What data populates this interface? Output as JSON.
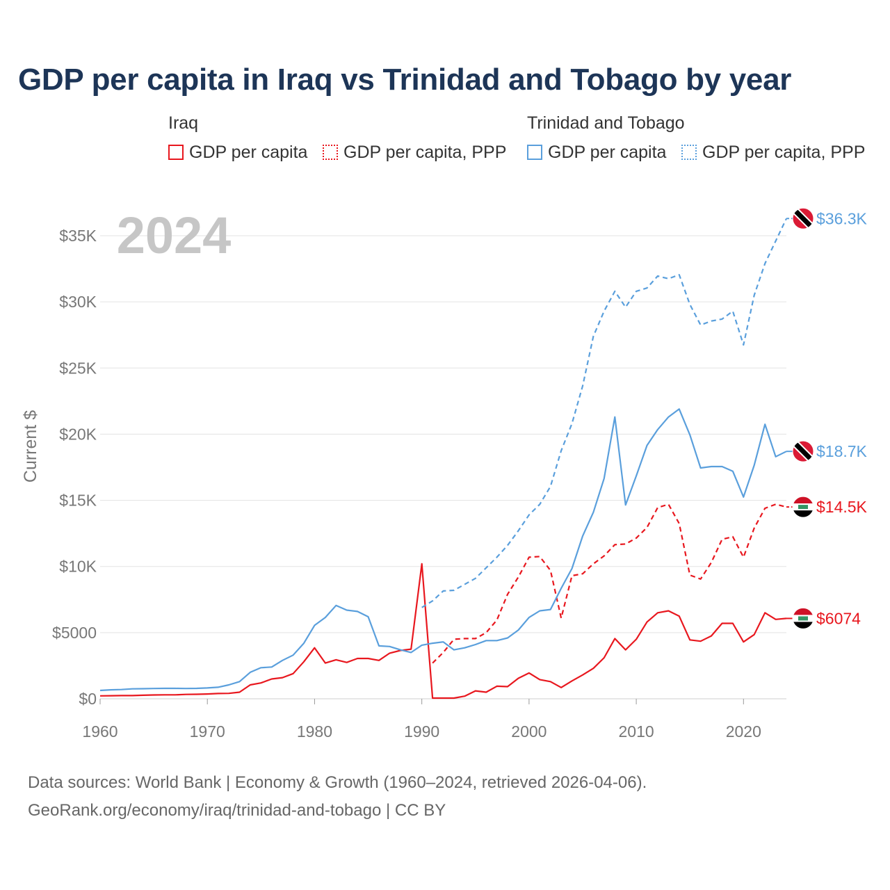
{
  "title": "GDP per capita in Iraq vs Trinidad and Tobago by year",
  "legend": {
    "groups": [
      {
        "title": "Iraq",
        "items": [
          {
            "label": "GDP per capita",
            "color": "#e8171e",
            "style": "solid"
          },
          {
            "label": "GDP per capita, PPP",
            "color": "#e8171e",
            "style": "dotted"
          }
        ]
      },
      {
        "title": "Trinidad and Tobago",
        "items": [
          {
            "label": "GDP per capita",
            "color": "#5a9fdc",
            "style": "solid"
          },
          {
            "label": "GDP per capita, PPP",
            "color": "#5a9fdc",
            "style": "dotted"
          }
        ]
      }
    ]
  },
  "sources": {
    "line1": "Data sources: World Bank | Economy & Growth (1960–2024, retrieved 2026-04-06).",
    "line2": "GeoRank.org/economy/iraq/trinidad-and-tobago | CC BY"
  },
  "chart_data": {
    "type": "line",
    "title": "GDP per capita in Iraq vs Trinidad and Tobago by year",
    "xlabel": "",
    "ylabel": "Current $",
    "xlim": [
      1960,
      2024
    ],
    "ylim": [
      0,
      37000
    ],
    "grid": true,
    "year_watermark": "2024",
    "x_ticks": [
      {
        "value": 1960,
        "label": "1960"
      },
      {
        "value": 1970,
        "label": "1970"
      },
      {
        "value": 1980,
        "label": "1980"
      },
      {
        "value": 1990,
        "label": "1990"
      },
      {
        "value": 2000,
        "label": "2000"
      },
      {
        "value": 2010,
        "label": "2010"
      },
      {
        "value": 2020,
        "label": "2020"
      }
    ],
    "y_ticks": [
      {
        "value": 0,
        "label": "$0"
      },
      {
        "value": 5000,
        "label": "$5000"
      },
      {
        "value": 10000,
        "label": "$10K"
      },
      {
        "value": 15000,
        "label": "$15K"
      },
      {
        "value": 20000,
        "label": "$20K"
      },
      {
        "value": 25000,
        "label": "$25K"
      },
      {
        "value": 30000,
        "label": "$30K"
      },
      {
        "value": 35000,
        "label": "$35K"
      }
    ],
    "series": [
      {
        "name": "Iraq GDP per capita",
        "country": "Iraq",
        "color": "#e8171e",
        "dashed": false,
        "end_label": "$6074",
        "x_start": 1960,
        "values": [
          220,
          230,
          240,
          240,
          270,
          290,
          300,
          300,
          330,
          340,
          360,
          400,
          410,
          500,
          1050,
          1200,
          1500,
          1600,
          1900,
          2800,
          3850,
          2700,
          2950,
          2750,
          3050,
          3050,
          2900,
          3450,
          3650,
          3750,
          10200,
          50,
          50,
          50,
          200,
          600,
          500,
          950,
          920,
          1550,
          1950,
          1450,
          1300,
          850,
          1350,
          1800,
          2300,
          3100,
          4550,
          3700,
          4500,
          5800,
          6500,
          6650,
          6250,
          4450,
          4350,
          4750,
          5700,
          5700,
          4300,
          4850,
          6500,
          6000,
          6074
        ]
      },
      {
        "name": "Iraq GDP per capita, PPP",
        "country": "Iraq",
        "color": "#e8171e",
        "dashed": true,
        "end_label": "$14.5K",
        "x_start": 1991,
        "values": [
          2700,
          3500,
          4500,
          4550,
          4550,
          5000,
          5950,
          7900,
          9200,
          10700,
          10750,
          9700,
          6100,
          9300,
          9450,
          10200,
          10800,
          11650,
          11700,
          12150,
          12950,
          14450,
          14700,
          13250,
          9350,
          9050,
          10300,
          12050,
          12250,
          10700,
          12900,
          14400,
          14700,
          14500
        ]
      },
      {
        "name": "Trinidad and Tobago GDP per capita",
        "country": "Trinidad and Tobago",
        "color": "#5a9fdc",
        "dashed": false,
        "end_label": "$18.7K",
        "x_start": 1960,
        "values": [
          630,
          680,
          700,
          750,
          760,
          780,
          790,
          790,
          780,
          790,
          820,
          870,
          1050,
          1300,
          2000,
          2350,
          2400,
          2900,
          3300,
          4200,
          5550,
          6150,
          7050,
          6700,
          6600,
          6200,
          4000,
          3950,
          3700,
          3500,
          4050,
          4200,
          4300,
          3700,
          3850,
          4100,
          4400,
          4400,
          4600,
          5200,
          6150,
          6650,
          6750,
          8350,
          9850,
          12300,
          14100,
          16650,
          21300,
          14650,
          16850,
          19150,
          20350,
          21300,
          21900,
          19950,
          17450,
          17550,
          17550,
          17200,
          15250,
          17650,
          20750,
          18300,
          18700
        ]
      },
      {
        "name": "Trinidad and Tobago GDP per capita, PPP",
        "country": "Trinidad and Tobago",
        "color": "#5a9fdc",
        "dashed": true,
        "end_label": "$36.3K",
        "x_start": 1990,
        "values": [
          6900,
          7400,
          8150,
          8200,
          8650,
          9100,
          9900,
          10700,
          11600,
          12700,
          13900,
          14700,
          16050,
          18750,
          20800,
          23650,
          27400,
          29300,
          30800,
          29600,
          30800,
          31050,
          31950,
          31750,
          32050,
          29800,
          28250,
          28550,
          28700,
          29300,
          26750,
          30500,
          32900,
          34600,
          36300
        ]
      }
    ]
  }
}
